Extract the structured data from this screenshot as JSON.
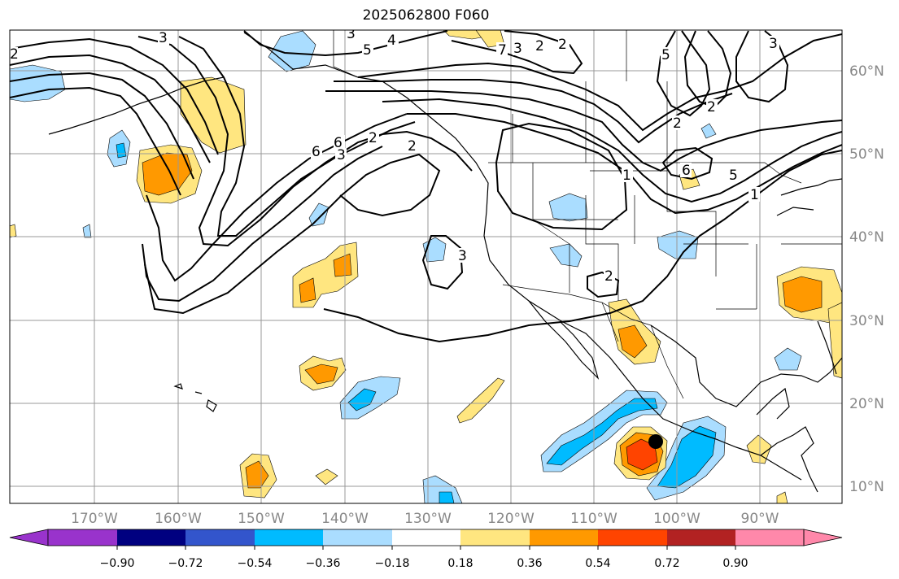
{
  "title": "2025062800 F060",
  "map": {
    "lon_labels": [
      "170°W",
      "160°W",
      "150°W",
      "140°W",
      "130°W",
      "120°W",
      "110°W",
      "100°W",
      "90°W"
    ],
    "lat_labels": [
      "60°N",
      "50°N",
      "40°N",
      "30°N",
      "20°N",
      "10°N"
    ],
    "contour_labels": [
      "3",
      "4",
      "5",
      "2",
      "7",
      "3",
      "2",
      "6",
      "2",
      "6",
      "3",
      "2",
      "2",
      "3",
      "2",
      "1",
      "6",
      "5",
      "1",
      "3",
      "2",
      "3",
      "2",
      "5"
    ],
    "colors": {
      "land_outline": "#000000",
      "grid": "#999999",
      "contour": "#000000"
    }
  },
  "colorbar": {
    "tick_labels": [
      "−0.90",
      "−0.72",
      "−0.54",
      "−0.36",
      "−0.18",
      "0.18",
      "0.36",
      "0.54",
      "0.72",
      "0.90"
    ],
    "colors": [
      "#9933cc",
      "#000080",
      "#3355cc",
      "#00bbff",
      "#aaddff",
      "#ffffff",
      "#ffe680",
      "#ff9900",
      "#ff4400",
      "#b22222",
      "#ff88aa"
    ]
  }
}
